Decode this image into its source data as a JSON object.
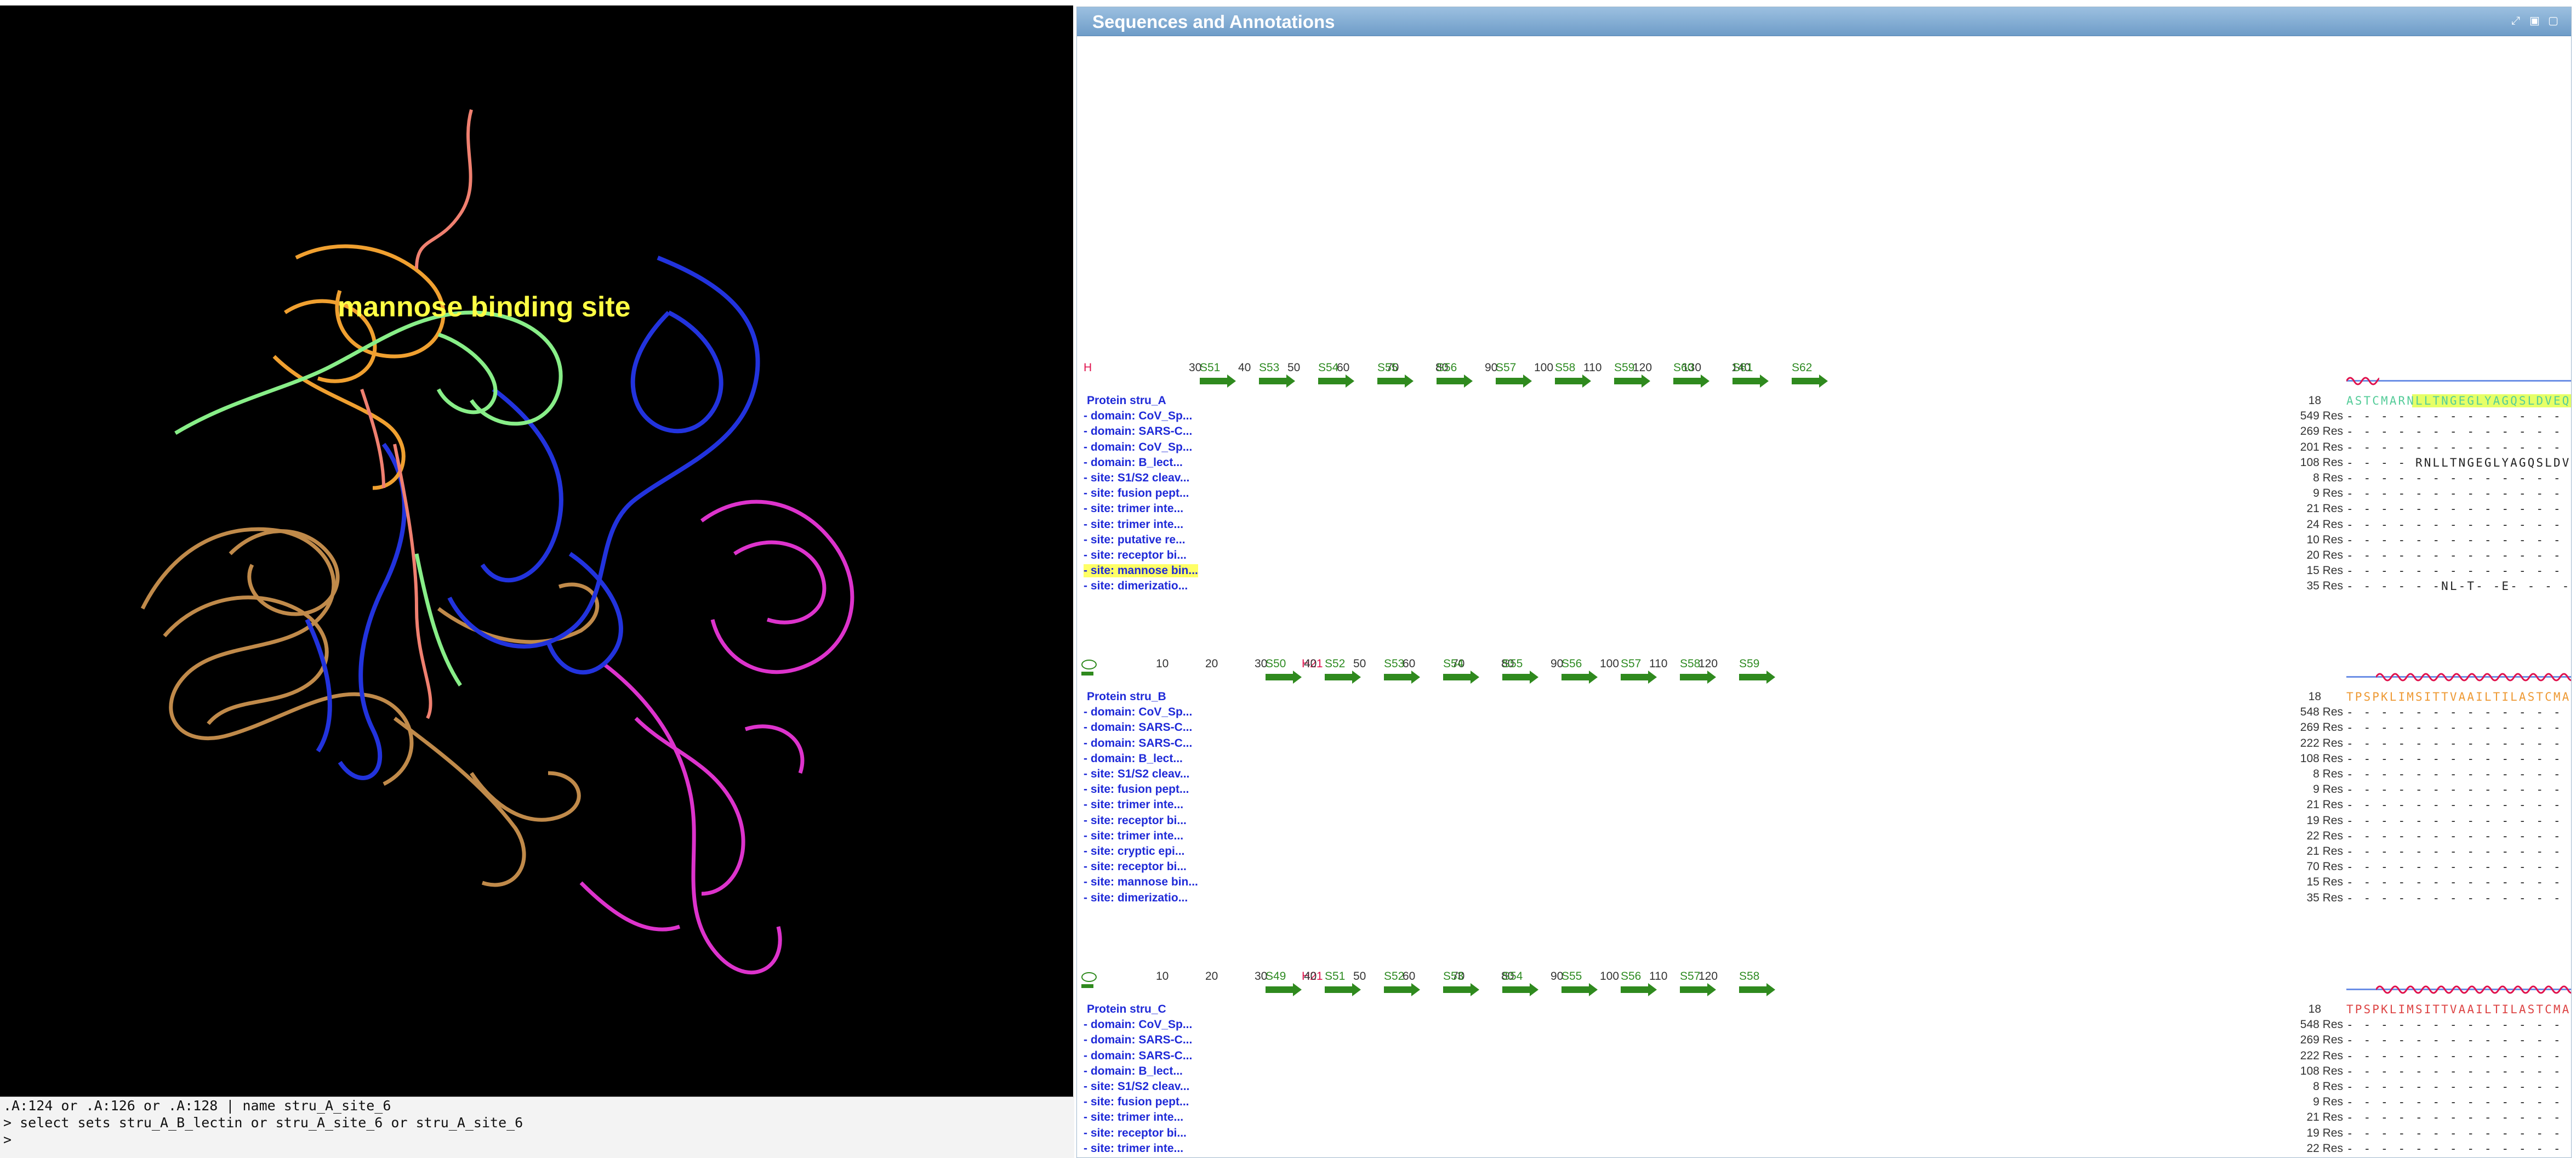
{
  "viewer": {
    "label": "mannose binding site",
    "label_color": "#ffff44",
    "background": "#000000",
    "chain_colors": [
      "#2233dd",
      "#dd33cc",
      "#c08a4a",
      "#f0a030",
      "#f08070",
      "#88ee88"
    ]
  },
  "console": {
    "lines": [
      ".A:124 or .A:126 or .A:128 | name stru_A_site_6",
      "> select sets stru_A_B_lectin or stru_A_site_6 or stru_A_site_6",
      ">"
    ]
  },
  "panel": {
    "title": "Sequences and Annotations",
    "blocks": [
      {
        "numbers": [
          "30",
          "40",
          "50",
          "60",
          "70",
          "80",
          "90",
          "100",
          "110",
          "120",
          "130",
          "140"
        ],
        "ss_labels": [
          "S51",
          "S53",
          "S54",
          "S55",
          "S56",
          "S57",
          "S58",
          "S59",
          "S60",
          "S61",
          "S62"
        ],
        "helix_label": "H",
        "protein": {
          "name": "Protein stru_A",
          "start": "18",
          "seq": "ASTCMARNLLTNGEGLYAGQSLDVEQYKFIMQDDCNLVLYEYSTPIWASNTGVTGKNGCRAVMQKDGNFVVYDVNGRPVWATNSVRGNGNYILVLQQDRNVVIYGSDIWSTGTYRRSAG",
          "color": "#55cc99"
        },
        "rows": [
          {
            "label": "- domain: CoV_Sp...",
            "count": "549 Res",
            "seq": "- - - - - - - - - - - - - - - - - - - - - - - - - - - - - - - - - - - - - - - - - - - - - - - - - - - - - - - - - - - - - - - - - - - - - - - - - - - - - - - -"
          },
          {
            "label": "- domain: SARS-C...",
            "count": "269 Res",
            "seq": "- - - - - - - - - - - - - - - - - - - - - - - - - - - - - - - - - - - - - - - - - - - - - - - - - - - - - - - - - - - - - - - - - - - - - - - - - - - - - - - -"
          },
          {
            "label": "- domain: CoV_Sp...",
            "count": "201 Res",
            "seq": "- - - - - - - - - - - - - - - - - - - - - - - - - - - - - - - - - - - - - - - - - - - - - - - - - - - - - - - - - - - - - - - - - - - - - - - - - - - - - - - -"
          },
          {
            "label": "- domain: B_lect...",
            "count": "108 Res",
            "seq": "- - - - RNLLTNGEGLYAGQSLDVEQYKFIMQDDCNLVLYEYSTPIWASNTGVTGKNGCRAVMQKDGNFVVYDVNGRPVWATNSVRGNGNYILVLQQDRNVVIYGSDIWSTGTY- - -"
          },
          {
            "label": "- site: S1/S2 cleav...",
            "count": "8 Res",
            "seq": "- - - - - - - - - - - - - - - - - - - - - - - - - - - - - - - - - - - - - - - - - - - - - - - - - - - - - - - - - - - - - - - - - - - - - - - - - - - - - - - -"
          },
          {
            "label": "- site: fusion pept...",
            "count": "9 Res",
            "seq": "- - - - - - - - - - - - - - - - - - - - - - - - - - - - - - - - - - - - - - - - - - - - - - - - - - - - - - - - - - - - - - - - - - - - - - - - - - - - - - - -"
          },
          {
            "label": "- site: trimer inte...",
            "count": "21 Res",
            "seq": "- - - - - - - - - - - - - - - - - - - - - - - - - - - - - - - - - - - - - - - - - - - - - - - - - - - - - - - - - - - - - - - - - - - - - - - - - - - - - - - -"
          },
          {
            "label": "- site: trimer inte...",
            "count": "24 Res",
            "seq": "- - - - - - - - - - - - - - - - - - - - - - - - - - - - - - - - - - - - - - - - - - - - - - - - - - - - - - - - - - - - - - - - - - - - - - - - - - - - - - - -"
          },
          {
            "label": "- site: putative re...",
            "count": "10 Res",
            "seq": "- - - - - - - - - - - - - - - - - - - - - - - - - - - - - - - - - - - - - - - - - - - - - - - - - - - - - - - - - - - - - - - - - - - - - - - - - - - - - - - -"
          },
          {
            "label": "- site: receptor bi...",
            "count": "20 Res",
            "seq": "- - - - - - - - - - - - - - - - - - - - - - - - - - - - - - - - - - - - - - - - - - - - - - - - - - - - - - - - - - - - - - - - - - - - - - - - - - - - - - - -"
          },
          {
            "label": "- site: mannose bin...",
            "count": "15 Res",
            "seq": "- - - - - - - - - - - - - - - - - - - - - - - - - - - - - - - - - - - - - - - Q-D-N-V-Y- - - - - - - - - - - - - - - - - - Q-D-N-V-Y- - - - - - - - - - - - - - - - - - Q-D-N-V-Y- - - - - - -",
            "highlight": true
          },
          {
            "label": "- site: dimerizatio...",
            "count": "35 Res",
            "seq": "- - - - - -NL-T- -E- - - - - - - - - - - - - - - - -L- - - - - - IW- - - - - - - - - - - - - - - - - - - - W-T- - - - - - - -N-I-V-QQDRNVVIYGSDIWSTGTY- -"
          }
        ]
      },
      {
        "numbers": [
          "10",
          "20",
          "30",
          "40",
          "50",
          "60",
          "70",
          "80",
          "90",
          "100",
          "110",
          "120"
        ],
        "ss_labels": [
          "S50",
          "S52",
          "S53",
          "S54",
          "S55",
          "S56",
          "S57",
          "S58",
          "S59"
        ],
        "helix_label": "H21",
        "protein": {
          "name": "Protein stru_B",
          "start": "18",
          "seq": "TPSPKLIMSITTVAAILTILASTCMARNLLTNGEGLYAGQSLDVEQYKFIMQDDCNLVLYEYSTPIWASNTGVTGKNGCRAVMQKDGNFVVYDVNGRPVWATNSVRGNGNYILVLQQDR",
          "color": "#ee9933"
        },
        "rows": [
          {
            "label": "- domain: CoV_Sp...",
            "count": "548 Res",
            "seq": "- - - - - - - - - - - - - - - - - - - - - - - - - - - - - - - - - - - - - - - - - - - - - - - - - - - - - - - - - - - - - - - - - - - - - - - - - - - - - - - -"
          },
          {
            "label": "- domain: SARS-C...",
            "count": "269 Res",
            "seq": "- - - - - - - - - - - - - - - - - - - - - - - - - - - - - - - - - - - - - - - - - - - - - - - - - - - - - - - - - - - - - - - - - - - - - - - - - - - - - - - -"
          },
          {
            "label": "- domain: SARS-C...",
            "count": "222 Res",
            "seq": "- - - - - - - - - - - - - - - - - - - - - - - - - - - - - - - - - - - - - - - - - - - - - - - - - - - - - - - - - - - - - - - - - - - - - - - - - - - - - - - -"
          },
          {
            "label": "- domain: B_lect...",
            "count": "108 Res",
            "seq": "- - - - - - - - - - - - - - - - - - - - - - - - - - -RNLLTNGEGLYAGQSLDVEQYKFIMQDDCNLVLYEYSTPIWASNTGVTGKNGCRAVMQKDGNFVVYDVNGRPVWATNSVRGNGNYILVLQQDR"
          },
          {
            "label": "- site: S1/S2 cleav...",
            "count": "8 Res",
            "seq": "- - - - - - - - - - - - - - - - - - - - - - - - - - - - - - - - - - - - - - - - - - - - - - - - - - - - - - - - - - - - - - - - - - - - - - - - - - - - - - - -"
          },
          {
            "label": "- site: fusion pept...",
            "count": "9 Res",
            "seq": "- - - - - - - - - - - - - - - - - - - - - - - - - - - - - - - - - - - - - - - - - - - - - - - - - - - - - - - - - - - - - - - - - - - - - - - - - - - - - - - -"
          },
          {
            "label": "- site: trimer inte...",
            "count": "21 Res",
            "seq": "- - - - - - - - - - - - - - - - - - - - - - - - - - - - - - - - - - - - - - - - - - - - - - - - - - - - - - - - - - - - - - - - - - - - - - - - - - - - - - - -"
          },
          {
            "label": "- site: receptor bi...",
            "count": "19 Res",
            "seq": "- - - - - - - - - - - - - - - - - - - - - - - - - - - - - - - - - - - - - - - - - - - - - - - - - - - - - - - - - - - - - - - - - - - - - - - - - - - - - - - -"
          },
          {
            "label": "- site: trimer inte...",
            "count": "22 Res",
            "seq": "- - - - - - - - - - - - - - - - - - - - - - - - - - - - - - - - - - - - - - - - - - - - - - - - - - - - - - - - - - - - - - - - - - - - - - - - - - - - - - - -"
          },
          {
            "label": "- site: cryptic epi...",
            "count": "21 Res",
            "seq": "- - - - - - - - - - - - - - - - - - - - - - - - - - - - - - - - - - - - - - - - - - - - - - - - - - - - - - - - - - - - - - - - - - - - - - - - - - - - - - - -"
          },
          {
            "label": "- site: receptor bi...",
            "count": "70 Res",
            "seq": "- - - - - - - - - - - - - - - - - - - - - - - - - - - - - - - - - - - - - - - - - - - - - - - - - - - - - - - - - - - - - - - - - - - - - - - - - - - - - - - -"
          },
          {
            "label": "- site: mannose bin...",
            "count": "15 Res",
            "seq": "- - - - - - - - - - - - - - - - - - - - - - - - - - - - - - - - - - - - - - - - - - - - - - - - - - - - Q-D-N-V-Y- - - - - - - - - - - - - - - - - - Q-D-N-V-Y- - - - - - - - - - - - - - - - - Q-D"
          },
          {
            "label": "- site: dimerizatio...",
            "count": "35 Res",
            "seq": "- - - - - - - - - - - - - - - - - - - - - - - - - - - - -NL-T- -E- - - - - - - - - - - - - - - -L- - - - - IW- - - - - - - - - - - - - - - - - - - - W-T- - - - - - -N-I-V-QQDR"
          }
        ]
      },
      {
        "numbers": [
          "10",
          "20",
          "30",
          "40",
          "50",
          "60",
          "70",
          "80",
          "90",
          "100",
          "110",
          "120"
        ],
        "ss_labels": [
          "S49",
          "S51",
          "S52",
          "S53",
          "S54",
          "S55",
          "S56",
          "S57",
          "S58"
        ],
        "helix_label": "H21",
        "protein": {
          "name": "Protein stru_C",
          "start": "18",
          "seq": "TPSPKLIMSITTVAAILTILASTCMARNLLTNGEGLYAGQSLDVEQYKFIMQDDCNLVLYEYSTPIWASNTGVTGKNGCRAVMQKDGNFVVYDVNGRPVWATNSVRGNGNYILVLQQDR",
          "color": "#dd4444"
        },
        "rows": [
          {
            "label": "- domain: CoV_Sp...",
            "count": "548 Res",
            "seq": "- - - - - - - - - - - - - - - - - - - - - - - - - - - - - - - - - - - - - - - - - - - - - - - - - - - - - - - - - - - - - - - - - - - - - - - - - - - - - - - -"
          },
          {
            "label": "- domain: SARS-C...",
            "count": "269 Res",
            "seq": "- - - - - - - - - - - - - - - - - - - - - - - - - - - - - - - - - - - - - - - - - - - - - - - - - - - - - - - - - - - - - - - - - - - - - - - - - - - - - - - -"
          },
          {
            "label": "- domain: SARS-C...",
            "count": "222 Res",
            "seq": "- - - - - - - - - - - - - - - - - - - - - - - - - - - - - - - - - - - - - - - - - - - - - - - - - - - - - - - - - - - - - - - - - - - - - - - - - - - - - - - -"
          },
          {
            "label": "- domain: B_lect...",
            "count": "108 Res",
            "seq": "- - - - - - - - - - - - - - - - - - - - - - - - - - -RNLLTNGEGLYAGQSLDVEQYKFIMQDDCNLVLYEYSTPIWASNTGVTGKNGCRAVMQKDGNFVVYDVNGRPVWATNSVRGNGNYILVLQQDR"
          },
          {
            "label": "- site: S1/S2 cleav...",
            "count": "8 Res",
            "seq": "- - - - - - - - - - - - - - - - - - - - - - - - - - - - - - - - - - - - - - - - - - - - - - - - - - - - - - - - - - - - - - - - - - - - - - - - - - - - - - - -"
          },
          {
            "label": "- site: fusion pept...",
            "count": "9 Res",
            "seq": "- - - - - - - - - - - - - - - - - - - - - - - - - - - - - - - - - - - - - - - - - - - - - - - - - - - - - - - - - - - - - - - - - - - - - - - - - - - - - - - -"
          },
          {
            "label": "- site: trimer inte...",
            "count": "21 Res",
            "seq": "- - - - - - - - - - - - - - - - - - - - - - - - - - - - - - - - - - - - - - - - - - - - - - - - - - - - - - - - - - - - - - - - - - - - - - - - - - - - - - - -"
          },
          {
            "label": "- site: receptor bi...",
            "count": "19 Res",
            "seq": "- - - - - - - - - - - - - - - - - - - - - - - - - - - - - - - - - - - - - - - - - - - - - - - - - - - - - - - - - - - - - - - - - - - - - - - - - - - - - - - -"
          },
          {
            "label": "- site: trimer inte...",
            "count": "22 Res",
            "seq": "- - - - - - - - - - - - - - - - - - - - - - - - - - - - - - - - - - - - - - - - - - - - - - - - - - - - - - - - - - - - - - - - - - - - - - - - - - - - - - - -"
          }
        ]
      }
    ]
  }
}
